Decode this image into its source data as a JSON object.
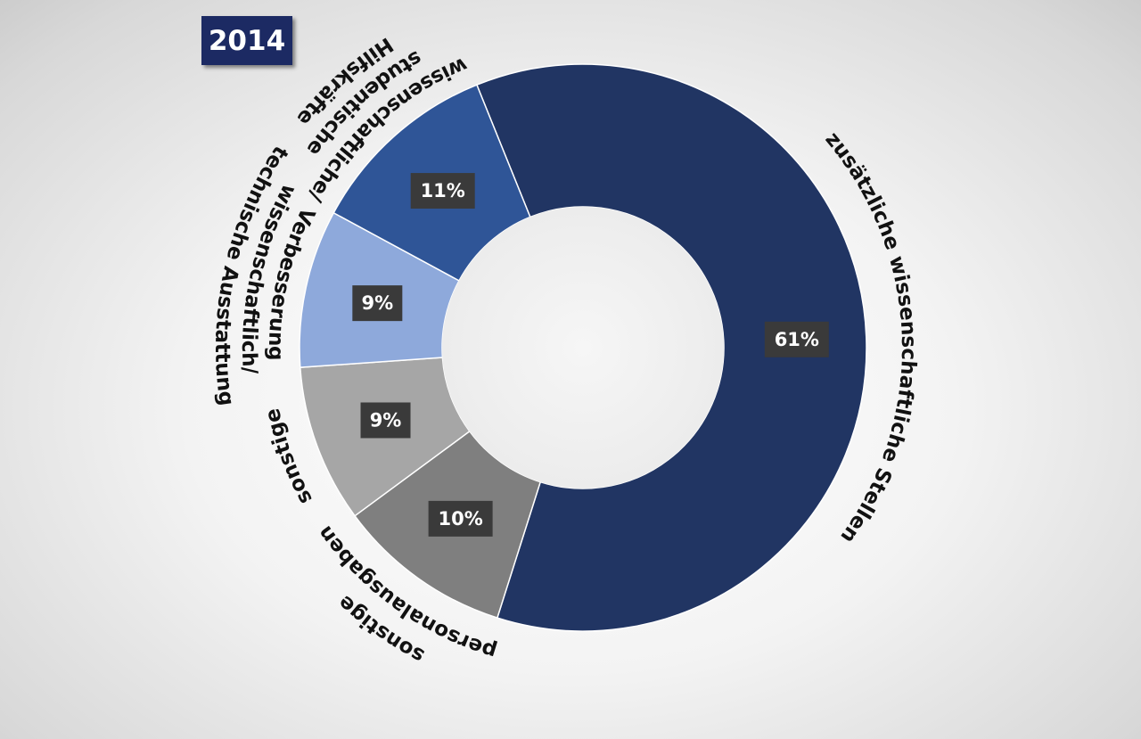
{
  "title": "2014",
  "colors": {
    "title_bg": "#1c2a63",
    "label_bg": "#3a3a3a",
    "background": "#eeeeee"
  },
  "chart_data": {
    "type": "pie",
    "variant": "donut",
    "title": "2014",
    "slices": [
      {
        "label": "zusätzliche wissenschaftliche Stellen",
        "value": 61,
        "display": "61%",
        "color": "#213563"
      },
      {
        "label": "sonstige personalausgaben",
        "value": 10,
        "display": "10%",
        "color": "#7f7f7f"
      },
      {
        "label": "sonstige",
        "value": 9,
        "display": "9%",
        "color": "#a6a6a6"
      },
      {
        "label": "Verbesserung wissenschaftlich/ technische Ausstattung",
        "value": 9,
        "display": "9%",
        "color": "#8ea9db"
      },
      {
        "label": "wissenschaftliche/ studentische Hilfskräfte",
        "value": 11,
        "display": "11%",
        "color": "#2f5597"
      }
    ],
    "legend": "none"
  }
}
